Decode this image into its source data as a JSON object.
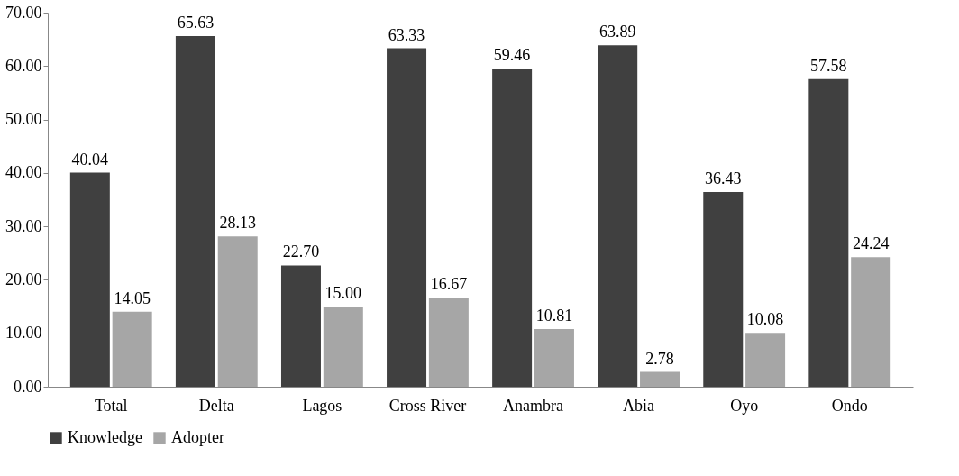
{
  "chart_data": {
    "type": "bar",
    "categories": [
      "Total",
      "Delta",
      "Lagos",
      "Cross River",
      "Anambra",
      "Abia",
      "Oyo",
      "Ondo"
    ],
    "series": [
      {
        "name": "Knowledge",
        "color": "#404040",
        "values": [
          40.04,
          65.63,
          22.7,
          63.33,
          59.46,
          63.89,
          36.43,
          57.58
        ],
        "value_labels": [
          "40.04",
          "65.63",
          "22.70",
          "63.33",
          "59.46",
          "63.89",
          "36.43",
          "57.58"
        ]
      },
      {
        "name": "Adopter",
        "color": "#a6a6a6",
        "values": [
          14.05,
          28.13,
          15.0,
          16.67,
          10.81,
          2.78,
          10.08,
          24.24
        ],
        "value_labels": [
          "14.05",
          "28.13",
          "15.00",
          "16.67",
          "10.81",
          "2.78",
          "10.08",
          "24.24"
        ]
      }
    ],
    "ylim": [
      0,
      70
    ],
    "yticks": [
      {
        "value": 0,
        "label": "0.00"
      },
      {
        "value": 10,
        "label": "10.00"
      },
      {
        "value": 20,
        "label": "20.00"
      },
      {
        "value": 30,
        "label": "30.00"
      },
      {
        "value": 40,
        "label": "40.00"
      },
      {
        "value": 50,
        "label": "50.00"
      },
      {
        "value": 60,
        "label": "60.00"
      },
      {
        "value": 70,
        "label": "70.00"
      }
    ],
    "grid": false,
    "legend": "bottom"
  }
}
